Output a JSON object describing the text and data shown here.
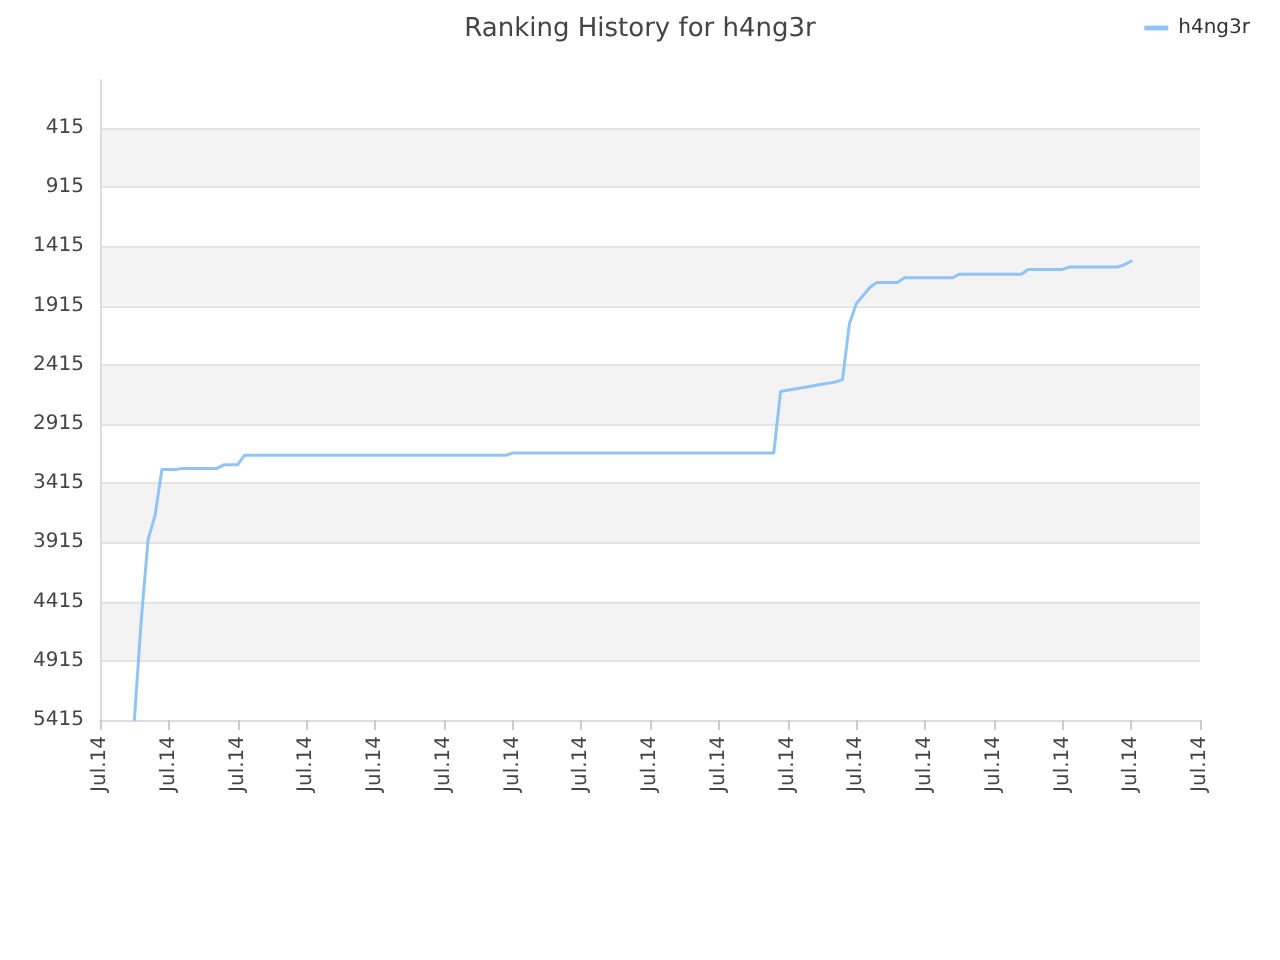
{
  "chart_data": {
    "type": "line",
    "title": "Ranking History for h4ng3r",
    "categories": [
      "Jul.14",
      null,
      null,
      null,
      null,
      null,
      null,
      null,
      null,
      null,
      "Jul.14",
      null,
      null,
      null,
      null,
      null,
      null,
      null,
      null,
      null,
      "Jul.14",
      null,
      null,
      null,
      null,
      null,
      null,
      null,
      null,
      null,
      "Jul.14",
      null,
      null,
      null,
      null,
      null,
      null,
      null,
      null,
      null,
      "Jul.14",
      null,
      null,
      null,
      null,
      null,
      null,
      null,
      null,
      null,
      "Jul.14",
      null,
      null,
      null,
      null,
      null,
      null,
      null,
      null,
      null,
      "Jul.14",
      null,
      null,
      null,
      null,
      null,
      null,
      null,
      null,
      null,
      "Jul.14",
      null,
      null,
      null,
      null,
      null,
      null,
      null,
      null,
      null,
      "Jul.14",
      null,
      null,
      null,
      null,
      null,
      null,
      null,
      null,
      null,
      "Jul.14",
      null,
      null,
      null,
      null,
      null,
      null,
      null,
      null,
      null,
      "Jul.14",
      null,
      null,
      null,
      null,
      null,
      null,
      null,
      null,
      null,
      "Jul.14",
      null,
      null,
      null,
      null,
      null,
      null,
      null,
      null,
      null,
      "Jul.14",
      null,
      null,
      null,
      null,
      null,
      null,
      null,
      null,
      null,
      "Jul.14",
      null,
      null,
      null,
      null,
      null,
      null,
      null,
      null,
      null,
      "Jul.14",
      null,
      null,
      null,
      null,
      null,
      null,
      null,
      null,
      null,
      "Jul.14",
      null,
      null,
      null,
      null,
      null,
      null,
      null,
      null,
      null,
      "Jul.14"
    ],
    "series": [
      {
        "name": "h4ng3r",
        "color": "#90c4f6",
        "values": [
          null,
          null,
          null,
          null,
          null,
          5415,
          4570,
          3890,
          3690,
          3300,
          3300,
          3300,
          3290,
          3290,
          3290,
          3290,
          3290,
          3290,
          3260,
          3260,
          3260,
          3180,
          3180,
          3180,
          3180,
          3180,
          3180,
          3180,
          3180,
          3180,
          3180,
          3180,
          3180,
          3180,
          3180,
          3180,
          3180,
          3180,
          3180,
          3180,
          3180,
          3180,
          3180,
          3180,
          3180,
          3180,
          3180,
          3180,
          3180,
          3180,
          3180,
          3180,
          3180,
          3180,
          3180,
          3180,
          3180,
          3180,
          3180,
          3180,
          3160,
          3160,
          3160,
          3160,
          3160,
          3160,
          3160,
          3160,
          3160,
          3160,
          3160,
          3160,
          3160,
          3160,
          3160,
          3160,
          3160,
          3160,
          3160,
          3160,
          3160,
          3160,
          3160,
          3160,
          3160,
          3160,
          3160,
          3160,
          3160,
          3160,
          3160,
          3160,
          3160,
          3160,
          3160,
          3160,
          3160,
          3160,
          3160,
          2640,
          2630,
          2620,
          2610,
          2600,
          2590,
          2580,
          2570,
          2560,
          2540,
          2070,
          1900,
          1830,
          1760,
          1720,
          1720,
          1720,
          1720,
          1680,
          1680,
          1680,
          1680,
          1680,
          1680,
          1680,
          1680,
          1650,
          1650,
          1650,
          1650,
          1650,
          1650,
          1650,
          1650,
          1650,
          1650,
          1610,
          1610,
          1610,
          1610,
          1610,
          1610,
          1590,
          1590,
          1590,
          1590,
          1590,
          1590,
          1590,
          1590,
          1570,
          1540,
          null,
          null,
          null,
          null,
          null,
          null,
          null,
          null,
          null,
          null
        ]
      }
    ],
    "ylim": [
      5415,
      10
    ],
    "yticks": [
      415,
      915,
      1415,
      1915,
      2415,
      2915,
      3415,
      3915,
      4415,
      4915,
      5415
    ],
    "grid": "y",
    "legend": "top right",
    "marker": "none",
    "line_style": "solid"
  }
}
